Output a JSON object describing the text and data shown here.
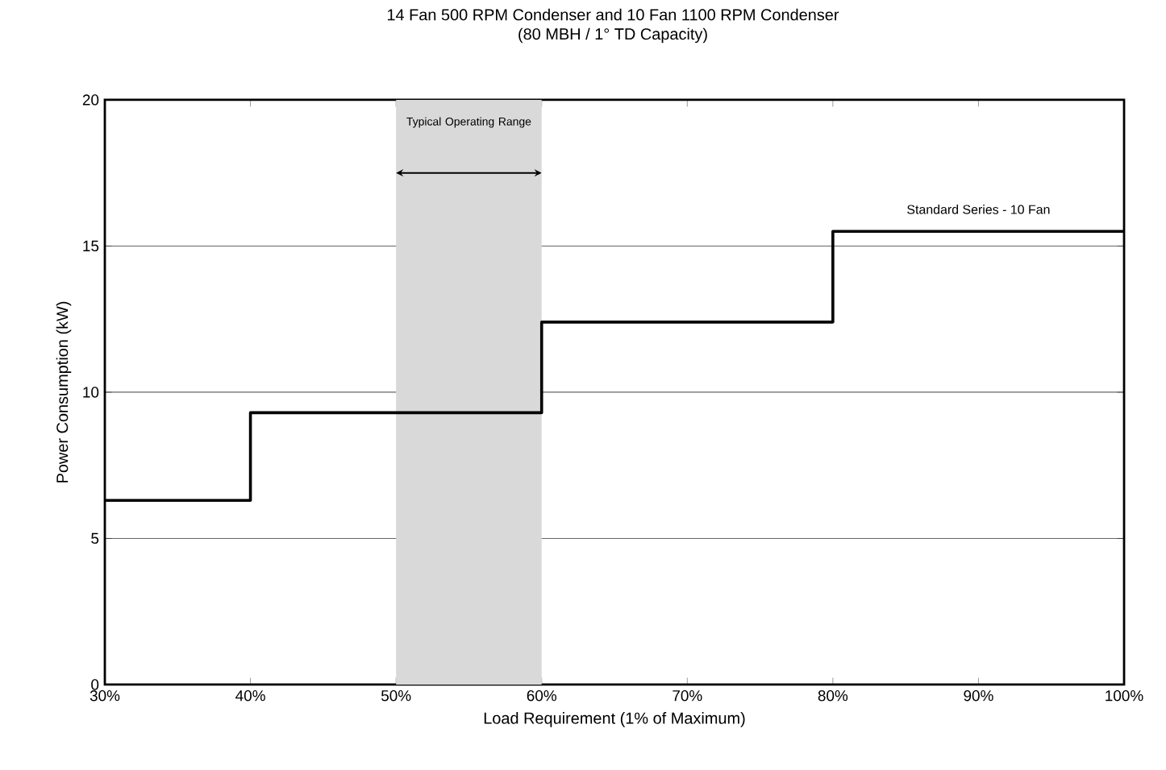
{
  "chart_data": {
    "type": "step",
    "title": "14 Fan 500 RPM Condenser and 10 Fan 1100 RPM Condenser",
    "subtitle": "(80 MBH / 1° TD Capacity)",
    "xlabel": "Load Requirement (1% of Maximum)",
    "ylabel": "Power Consumption (kW)",
    "x": [
      30,
      40,
      60,
      80,
      100
    ],
    "series": [
      {
        "name": "Standard Series - 10 Fan",
        "color": "#000000",
        "values": [
          6.3,
          9.3,
          12.4,
          15.5,
          15.5
        ]
      }
    ],
    "xlim": [
      30,
      100
    ],
    "ylim": [
      0,
      20
    ],
    "xticks": [
      {
        "value": 30,
        "label": "30%"
      },
      {
        "value": 40,
        "label": "40%"
      },
      {
        "value": 50,
        "label": "50%"
      },
      {
        "value": 60,
        "label": "60%"
      },
      {
        "value": 70,
        "label": "70%"
      },
      {
        "value": 80,
        "label": "80%"
      },
      {
        "value": 90,
        "label": "90%"
      },
      {
        "value": 100,
        "label": "100%"
      }
    ],
    "yticks": [
      0,
      5,
      10,
      15,
      20
    ],
    "grid": "y",
    "bands": [
      {
        "axis": "x",
        "from": 50,
        "to": 60,
        "label": "Typical Operating Range",
        "color": "#d9d9d9"
      }
    ]
  }
}
